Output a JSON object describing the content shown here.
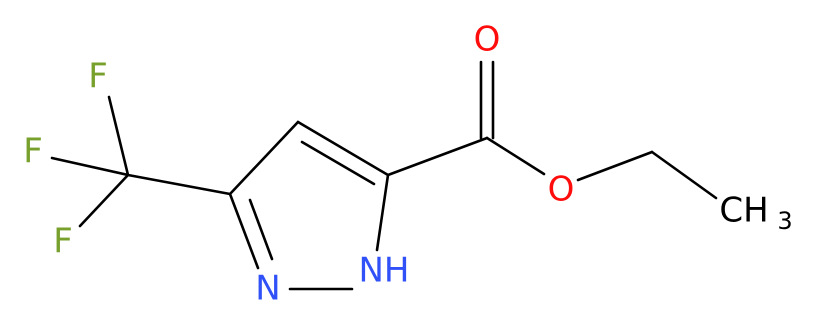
{
  "atoms": [
    {
      "label": "F"
    },
    {
      "label": "F"
    },
    {
      "label": "F"
    },
    {
      "label": "N"
    },
    {
      "label": "NH"
    },
    {
      "label": "O"
    },
    {
      "label": "O"
    },
    {
      "label": "CH",
      "subscript": "3"
    }
  ]
}
